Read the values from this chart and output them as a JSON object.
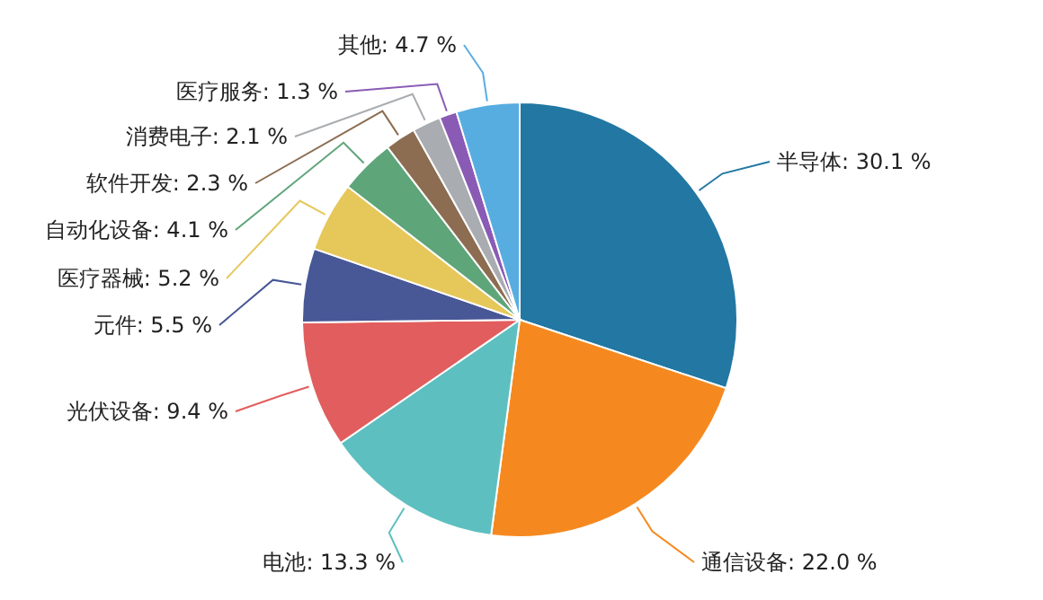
{
  "chart_data": {
    "type": "pie",
    "categories": [
      "半导体",
      "通信设备",
      "电池",
      "光伏设备",
      "元件",
      "医疗器械",
      "自动化设备",
      "软件开发",
      "消费电子",
      "医疗服务",
      "其他"
    ],
    "values": [
      30.1,
      22.0,
      13.3,
      9.4,
      5.5,
      5.2,
      4.1,
      2.3,
      2.1,
      1.3,
      4.7
    ],
    "value_labels": [
      "30.1 %",
      "22.0 %",
      "13.3 %",
      "9.4 %",
      "5.5 %",
      "5.2 %",
      "4.1 %",
      "2.3 %",
      "2.1 %",
      "1.3 %",
      "4.7 %"
    ],
    "colors": [
      "#2277a3",
      "#f5891f",
      "#5ebfc0",
      "#e25d5d",
      "#485796",
      "#e6c75a",
      "#5fa57a",
      "#8c6d52",
      "#a9acb0",
      "#8a5bb5",
      "#57ade0"
    ]
  }
}
